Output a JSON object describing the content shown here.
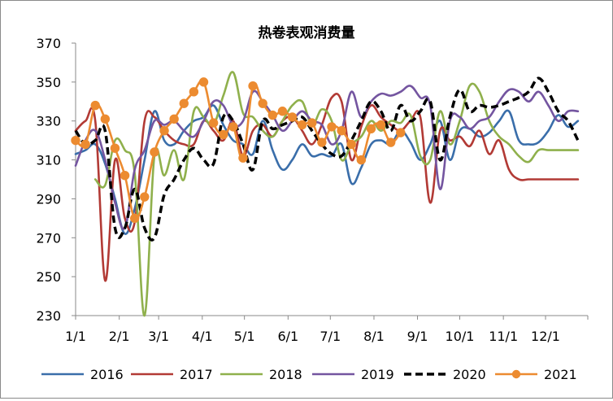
{
  "chart_data": {
    "type": "line",
    "title": "热卷表观消费量",
    "xlabel": "",
    "ylabel": "",
    "ylim": [
      230,
      370
    ],
    "y_ticks": [
      230,
      250,
      270,
      290,
      310,
      330,
      350,
      370
    ],
    "x_ticks": [
      "1/1",
      "2/1",
      "3/1",
      "4/1",
      "5/1",
      "6/1",
      "7/1",
      "8/1",
      "9/1",
      "10/1",
      "11/1",
      "12/1"
    ],
    "grid": false,
    "legend_position": "bottom",
    "colors": {
      "2016": "#3a6eaa",
      "2017": "#b23a35",
      "2018": "#8fb04c",
      "2019": "#7455a0",
      "2020": "#000000",
      "2021": "#ec8b30"
    },
    "series": [
      {
        "name": "2016",
        "style": "solid",
        "x": [
          1,
          2,
          3,
          4,
          5,
          6,
          7,
          8,
          9,
          10,
          11,
          12,
          13,
          14,
          15,
          16,
          17,
          18,
          19,
          20,
          21,
          22,
          23,
          24,
          25,
          26,
          27,
          28,
          29,
          30,
          31,
          32,
          33,
          34,
          35,
          36,
          37,
          38,
          39,
          40,
          41,
          42,
          43,
          44,
          45,
          46,
          47,
          48,
          49,
          50,
          51,
          52
        ],
        "values": [
          313,
          315,
          318,
          308,
          290,
          272,
          285,
          310,
          335,
          320,
          318,
          325,
          330,
          332,
          338,
          328,
          320,
          318,
          313,
          330,
          315,
          305,
          310,
          318,
          312,
          313,
          312,
          318,
          298,
          306,
          318,
          320,
          318,
          325,
          319,
          310,
          318,
          330,
          310,
          325,
          326,
          322,
          324,
          330,
          335,
          320,
          318,
          319,
          325,
          333,
          327,
          330
        ]
      },
      {
        "name": "2017",
        "style": "solid",
        "x": [
          1,
          2,
          3,
          4,
          5,
          6,
          7,
          8,
          9,
          10,
          11,
          12,
          13,
          14,
          15,
          16,
          17,
          18,
          19,
          20,
          21,
          22,
          23,
          24,
          25,
          26,
          27,
          28,
          29,
          30,
          31,
          32,
          33,
          34,
          35,
          36,
          37,
          38,
          39,
          40,
          41,
          42,
          43,
          44,
          45,
          46,
          47,
          48,
          49,
          50,
          51,
          52
        ],
        "values": [
          325,
          330,
          330,
          248,
          310,
          280,
          278,
          330,
          332,
          325,
          320,
          318,
          318,
          330,
          325,
          320,
          330,
          312,
          325,
          328,
          322,
          330,
          332,
          325,
          318,
          328,
          342,
          340,
          310,
          327,
          338,
          332,
          328,
          325,
          330,
          332,
          288,
          325,
          320,
          322,
          317,
          325,
          313,
          320,
          305,
          300,
          300,
          300,
          300,
          300,
          300,
          300
        ]
      },
      {
        "name": "2018",
        "style": "solid",
        "x": [
          3,
          4,
          5,
          6,
          7,
          8,
          9,
          10,
          11,
          12,
          13,
          14,
          15,
          16,
          17,
          18,
          19,
          20,
          21,
          22,
          23,
          24,
          25,
          26,
          27,
          28,
          29,
          30,
          31,
          32,
          33,
          34,
          35,
          36,
          37,
          38,
          39,
          40,
          41,
          42,
          43,
          44,
          45,
          46,
          47,
          48,
          49,
          50,
          51,
          52
        ],
        "values": [
          300,
          297,
          320,
          315,
          303,
          230,
          312,
          302,
          315,
          300,
          335,
          332,
          328,
          343,
          355,
          334,
          332,
          325,
          322,
          330,
          338,
          340,
          328,
          336,
          330,
          310,
          318,
          322,
          330,
          325,
          330,
          329,
          333,
          312,
          310,
          335,
          318,
          330,
          348,
          345,
          330,
          322,
          318,
          312,
          309,
          315,
          315,
          315,
          315,
          315
        ]
      },
      {
        "name": "2019",
        "style": "solid",
        "x": [
          1,
          2,
          3,
          4,
          5,
          6,
          7,
          8,
          9,
          10,
          11,
          12,
          13,
          14,
          15,
          16,
          17,
          18,
          19,
          20,
          21,
          22,
          23,
          24,
          25,
          26,
          27,
          28,
          29,
          30,
          31,
          32,
          33,
          34,
          35,
          36,
          37,
          38,
          39,
          40,
          41,
          42,
          43,
          44,
          45,
          46,
          47,
          48,
          49,
          50,
          51,
          52
        ],
        "values": [
          307,
          320,
          325,
          310,
          288,
          275,
          305,
          315,
          330,
          328,
          330,
          325,
          322,
          330,
          340,
          338,
          328,
          330,
          345,
          340,
          333,
          325,
          330,
          335,
          330,
          328,
          318,
          325,
          345,
          332,
          340,
          344,
          343,
          345,
          348,
          342,
          338,
          295,
          330,
          332,
          326,
          330,
          332,
          340,
          346,
          345,
          340,
          345,
          338,
          330,
          335,
          335
        ]
      },
      {
        "name": "2020",
        "style": "dashed",
        "x": [
          1,
          2,
          3,
          4,
          5,
          6,
          7,
          8,
          9,
          10,
          11,
          12,
          13,
          14,
          15,
          16,
          17,
          18,
          19,
          20,
          21,
          22,
          23,
          24,
          25,
          26,
          27,
          28,
          29,
          30,
          31,
          32,
          33,
          34,
          35,
          36,
          37,
          38,
          39,
          40,
          41,
          42,
          43,
          44,
          45,
          46,
          47,
          48,
          49,
          50,
          51,
          52
        ],
        "values": [
          325,
          318,
          320,
          325,
          275,
          275,
          295,
          275,
          270,
          292,
          300,
          310,
          316,
          310,
          308,
          332,
          330,
          318,
          305,
          330,
          326,
          328,
          330,
          332,
          325,
          318,
          313,
          312,
          320,
          330,
          340,
          335,
          325,
          338,
          330,
          335,
          340,
          310,
          332,
          346,
          335,
          338,
          337,
          338,
          340,
          342,
          345,
          352,
          345,
          335,
          330,
          320
        ]
      },
      {
        "name": "2021",
        "style": "solid-markers",
        "x": [
          1,
          2,
          3,
          4,
          5,
          6,
          7,
          8,
          9,
          10,
          11,
          12,
          13,
          14,
          15,
          16,
          17,
          18,
          19,
          20,
          21,
          22,
          23,
          24,
          25,
          26,
          27,
          28,
          29,
          30,
          31,
          32,
          33,
          34
        ],
        "values": [
          320,
          318,
          338,
          331,
          316,
          302,
          280,
          291,
          314,
          325,
          331,
          339,
          345,
          350,
          329,
          323,
          327,
          311,
          348,
          339,
          333,
          335,
          332,
          328,
          329,
          319,
          327,
          325,
          318,
          310,
          326,
          328,
          319,
          324
        ]
      }
    ]
  }
}
